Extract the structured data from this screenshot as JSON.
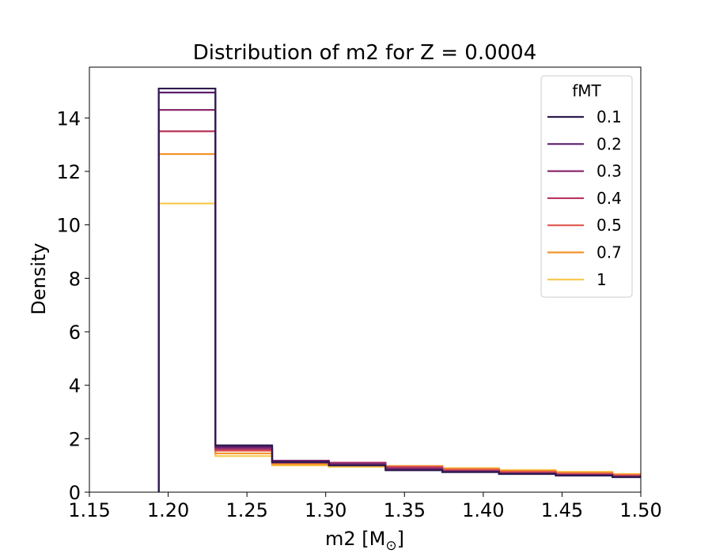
{
  "chart_data": {
    "type": "step-histogram",
    "title": "Distribution of m2 for Z = 0.0004",
    "xlabel": "m2 [M",
    "xlabel_suffix": "]",
    "ylabel": "Density",
    "xlim": [
      1.15,
      1.5
    ],
    "ylim": [
      0,
      15.9
    ],
    "x_ticks": [
      "1.15",
      "1.20",
      "1.25",
      "1.30",
      "1.35",
      "1.40",
      "1.45",
      "1.50"
    ],
    "y_ticks": [
      "0",
      "2",
      "4",
      "6",
      "8",
      "10",
      "12",
      "14"
    ],
    "bin_edges": [
      1.194,
      1.23,
      1.266,
      1.302,
      1.338,
      1.374,
      1.41,
      1.446,
      1.482,
      1.518
    ],
    "legend": {
      "title": "fMT",
      "position": "top-right"
    },
    "series": [
      {
        "name": "0.1",
        "color": "#2e1a4e",
        "values": [
          15.1,
          1.75,
          1.12,
          1.0,
          0.82,
          0.75,
          0.68,
          0.62,
          0.56
        ]
      },
      {
        "name": "0.2",
        "color": "#5b1e6e",
        "values": [
          14.95,
          1.7,
          1.15,
          1.02,
          0.84,
          0.76,
          0.69,
          0.63,
          0.57
        ]
      },
      {
        "name": "0.3",
        "color": "#8c2a6e",
        "values": [
          14.3,
          1.65,
          1.18,
          1.08,
          0.88,
          0.78,
          0.7,
          0.64,
          0.58
        ]
      },
      {
        "name": "0.4",
        "color": "#b83a63",
        "values": [
          13.5,
          1.6,
          1.15,
          1.1,
          0.92,
          0.8,
          0.72,
          0.66,
          0.6
        ]
      },
      {
        "name": "0.5",
        "color": "#e0564c",
        "values": [
          13.5,
          1.55,
          1.1,
          1.1,
          0.95,
          0.84,
          0.76,
          0.69,
          0.63
        ]
      },
      {
        "name": "0.7",
        "color": "#f4932a",
        "values": [
          12.65,
          1.45,
          1.05,
          1.05,
          0.98,
          0.88,
          0.8,
          0.73,
          0.66
        ]
      },
      {
        "name": "1",
        "color": "#f8c84a",
        "values": [
          10.8,
          1.35,
          1.0,
          0.95,
          0.95,
          0.9,
          0.83,
          0.76,
          0.68
        ]
      }
    ]
  }
}
